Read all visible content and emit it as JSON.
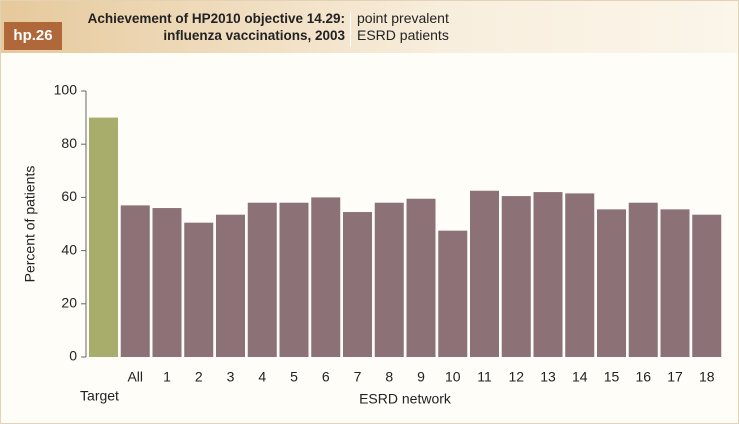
{
  "chart_data": {
    "type": "bar",
    "label": "hp.26",
    "title": "Achievement of HP2010 objective 14.29: influenza vaccinations, 2003",
    "subtitle": "point prevalent ESRD patients",
    "x_label": "ESRD network",
    "y_label": "Percent of patients",
    "categories": [
      "Target",
      "All",
      "1",
      "2",
      "3",
      "4",
      "5",
      "6",
      "7",
      "8",
      "9",
      "10",
      "11",
      "12",
      "13",
      "14",
      "15",
      "16",
      "17",
      "18"
    ],
    "values": [
      90,
      57,
      56,
      50.5,
      53.5,
      58,
      58,
      60,
      54.5,
      58,
      59.5,
      47.5,
      62.5,
      60.5,
      62,
      61.5,
      55.5,
      58,
      55.5,
      53.5
    ],
    "colors": [
      "#a9ad6b",
      "#8c7276",
      "#8c7276",
      "#8c7276",
      "#8c7276",
      "#8c7276",
      "#8c7276",
      "#8c7276",
      "#8c7276",
      "#8c7276",
      "#8c7276",
      "#8c7276",
      "#8c7276",
      "#8c7276",
      "#8c7276",
      "#8c7276",
      "#8c7276",
      "#8c7276",
      "#8c7276",
      "#8c7276"
    ],
    "ylim": [
      0,
      100
    ],
    "yticks": [
      0,
      20,
      40,
      60,
      80,
      100
    ]
  }
}
